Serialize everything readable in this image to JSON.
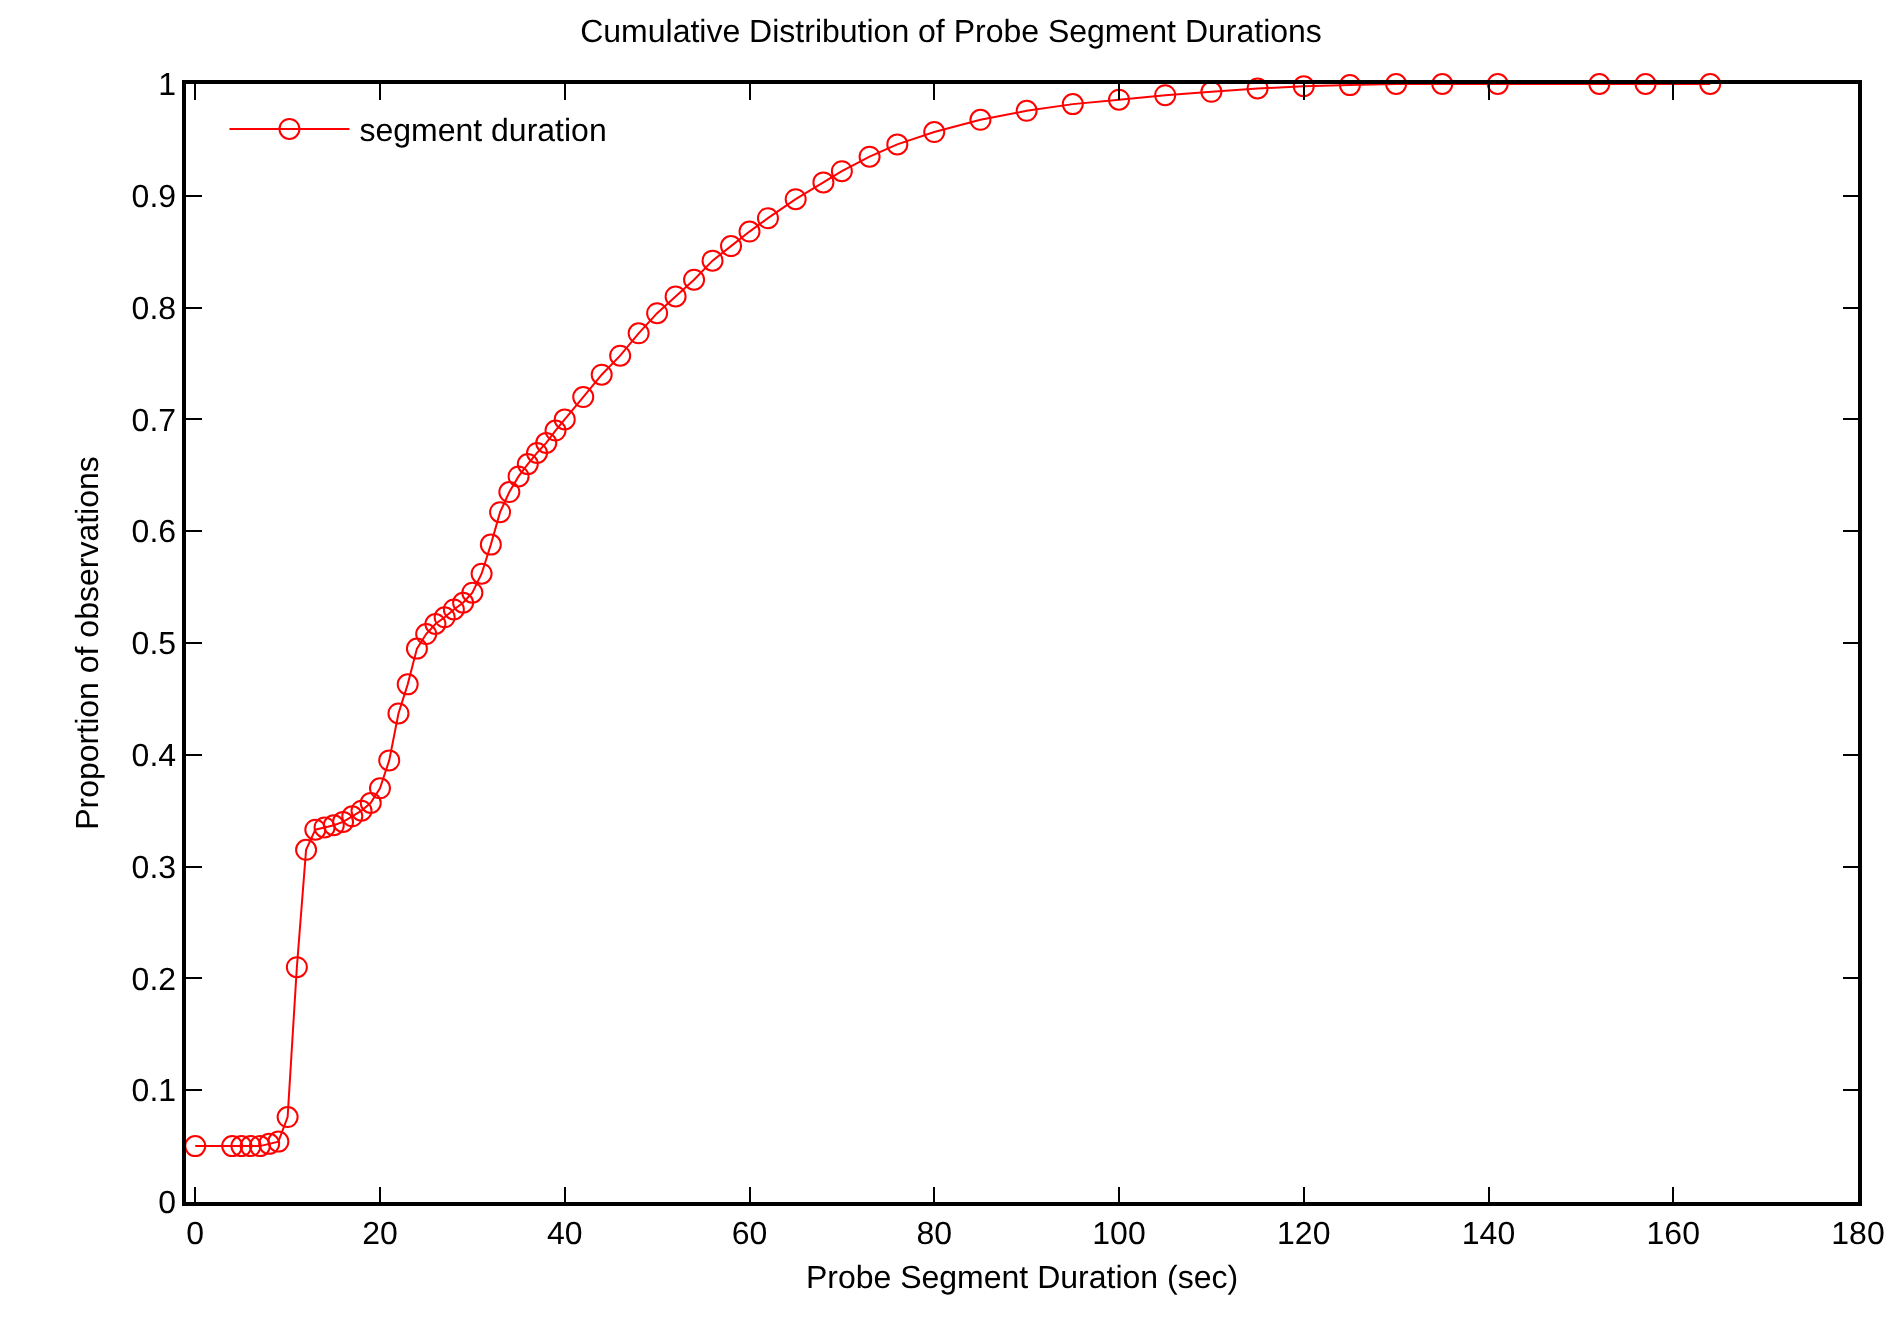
{
  "chart_data": {
    "type": "line",
    "title": "Cumulative Distribution of Probe Segment Durations",
    "xlabel": "Probe Segment Duration (sec)",
    "ylabel": "Proportion of observations",
    "x": [
      0,
      4,
      5,
      6,
      7,
      8,
      9,
      10,
      11,
      12,
      13,
      14,
      15,
      16,
      17,
      18,
      19,
      20,
      21,
      22,
      23,
      24,
      25,
      26,
      27,
      28,
      29,
      30,
      31,
      32,
      33,
      34,
      35,
      36,
      37,
      38,
      39,
      40,
      42,
      44,
      46,
      48,
      50,
      52,
      54,
      56,
      58,
      60,
      62,
      65,
      68,
      70,
      73,
      76,
      80,
      85,
      90,
      95,
      100,
      105,
      110,
      115,
      120,
      125,
      130,
      135,
      141,
      152,
      157,
      164
    ],
    "series": [
      {
        "name": "segment duration",
        "color": "#ff0000",
        "values": [
          0.05,
          0.05,
          0.05,
          0.05,
          0.05,
          0.052,
          0.054,
          0.076,
          0.21,
          0.315,
          0.333,
          0.335,
          0.337,
          0.34,
          0.345,
          0.35,
          0.357,
          0.37,
          0.395,
          0.437,
          0.463,
          0.495,
          0.508,
          0.517,
          0.523,
          0.53,
          0.536,
          0.545,
          0.562,
          0.588,
          0.617,
          0.635,
          0.649,
          0.66,
          0.67,
          0.679,
          0.69,
          0.7,
          0.72,
          0.74,
          0.757,
          0.777,
          0.795,
          0.81,
          0.825,
          0.842,
          0.855,
          0.868,
          0.88,
          0.897,
          0.912,
          0.922,
          0.935,
          0.946,
          0.957,
          0.968,
          0.976,
          0.982,
          0.986,
          0.99,
          0.993,
          0.996,
          0.998,
          0.999,
          1,
          1,
          1,
          1,
          1,
          1
        ]
      }
    ],
    "xlim": [
      -1,
      180
    ],
    "xticks": [
      0,
      20,
      40,
      60,
      80,
      100,
      120,
      140,
      160,
      180
    ],
    "ylim": [
      0,
      1
    ],
    "yticks": [
      0,
      0.1,
      0.2,
      0.3,
      0.4,
      0.5,
      0.6,
      0.7,
      0.8,
      0.9,
      1
    ],
    "grid": false,
    "legend": "top left",
    "marker": "circle",
    "line_style": "solid"
  }
}
